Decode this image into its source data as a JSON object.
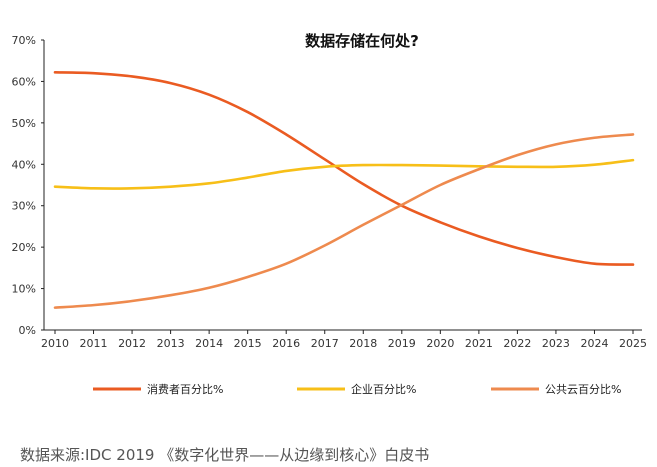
{
  "chart_data": {
    "type": "line",
    "title": "数据存储在何处?",
    "x": [
      2010,
      2011,
      2012,
      2013,
      2014,
      2015,
      2016,
      2017,
      2018,
      2019,
      2020,
      2021,
      2022,
      2023,
      2024,
      2025
    ],
    "ylim": [
      0,
      70
    ],
    "yticks": [
      "0%",
      "10%",
      "20%",
      "30%",
      "40%",
      "50%",
      "60%",
      "70%"
    ],
    "legend_position": "bottom",
    "series": [
      {
        "name": "消费者百分比%",
        "color": "#ea5b22",
        "values": [
          62.2,
          62.0,
          61.2,
          59.6,
          56.8,
          52.6,
          47.2,
          41.2,
          35.2,
          30.0,
          26.0,
          22.6,
          19.8,
          17.6,
          16.0,
          15.8
        ]
      },
      {
        "name": "企业百分比%",
        "color": "#f7bf18",
        "values": [
          34.6,
          34.2,
          34.2,
          34.6,
          35.4,
          36.8,
          38.4,
          39.4,
          39.8,
          39.8,
          39.7,
          39.5,
          39.4,
          39.4,
          39.9,
          41.0
        ]
      },
      {
        "name": "公共云百分比%",
        "color": "#ee8a4e",
        "values": [
          5.4,
          6.0,
          7.0,
          8.4,
          10.2,
          12.8,
          16.0,
          20.4,
          25.4,
          30.2,
          35.0,
          38.8,
          42.2,
          44.8,
          46.4,
          47.2
        ]
      }
    ]
  },
  "source": "数据来源:IDC 2019 《数字化世界——从边缘到核心》白皮书"
}
